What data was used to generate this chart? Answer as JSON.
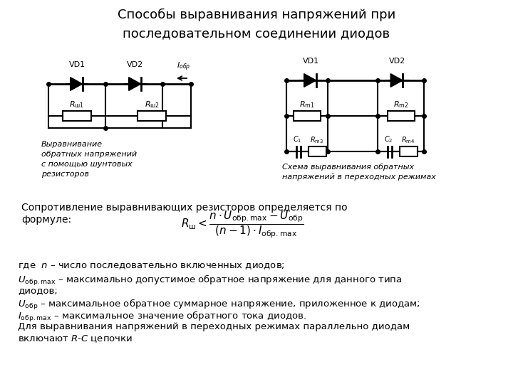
{
  "title_line1": "Способы выравнивания напряжений при",
  "title_line2": "последовательном соединении диодов",
  "title_fontsize": 13,
  "bg_color": "#ffffff",
  "text_color": "#000000",
  "caption_left_lines": [
    "Выравнивание",
    "обратных напряжений",
    "с помощью шунтовых",
    "резисторов"
  ],
  "caption_right_lines": [
    "Схема выравнивания обратных",
    "напряжений в переходных режимах"
  ],
  "formula_line1": "Сопротивление выравнивающих резисторов определяется по",
  "formula_line2": "формуле:",
  "legend_lines": [
    "где  {n} – число последовательно включенных диодов;",
    "{U_obrmax} – максимально допустимое обратное напряжение для данного типа",
    "диодов;",
    "{U_obr} – максимальное обратное суммарное напряжение, приложенное к диодам;",
    "{I_obrmax} – максимальное значение обратного тока диодов.",
    "Для выравнивания напряжений в переходных режимах параллельно диодам",
    "включают {RC} цепочки"
  ]
}
